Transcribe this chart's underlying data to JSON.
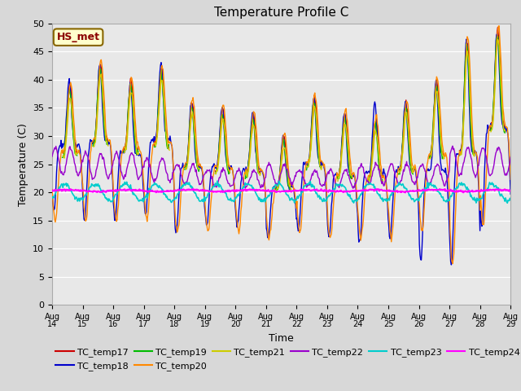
{
  "title": "Temperature Profile C",
  "xlabel": "Time",
  "ylabel": "Temperature (C)",
  "ylim": [
    0,
    50
  ],
  "background_color": "#e0e0e0",
  "grid_color": "#ffffff",
  "series": {
    "TC_temp17": {
      "color": "#cc0000",
      "lw": 1.0
    },
    "TC_temp18": {
      "color": "#0000cc",
      "lw": 1.0
    },
    "TC_temp19": {
      "color": "#00bb00",
      "lw": 1.0
    },
    "TC_temp20": {
      "color": "#ff8800",
      "lw": 1.0
    },
    "TC_temp21": {
      "color": "#cccc00",
      "lw": 1.0
    },
    "TC_temp22": {
      "color": "#9900cc",
      "lw": 1.0
    },
    "TC_temp23": {
      "color": "#00cccc",
      "lw": 1.2
    },
    "TC_temp24": {
      "color": "#ff00ff",
      "lw": 1.5
    }
  },
  "annotation_text": "HS_met",
  "tick_labels": [
    "Aug 14",
    "Aug 15",
    "Aug 16",
    "Aug 17",
    "Aug 18",
    "Aug 19",
    "Aug 20",
    "Aug 21",
    "Aug 22",
    "Aug 23",
    "Aug 24",
    "Aug 25",
    "Aug 26",
    "Aug 27",
    "Aug 28",
    "Aug 29"
  ],
  "yticks": [
    0,
    5,
    10,
    15,
    20,
    25,
    30,
    35,
    40,
    45,
    50
  ],
  "day_peaks_main": [
    39,
    43,
    40,
    42,
    36,
    35,
    34,
    30,
    37,
    34,
    33,
    36,
    40,
    47,
    49
  ],
  "day_peaks_blue": [
    40,
    43,
    39,
    43,
    36,
    35,
    34,
    30,
    37,
    34,
    36,
    36,
    40,
    47,
    49
  ],
  "day_peaks_purple": [
    28,
    27,
    27,
    26,
    25,
    24,
    24,
    25,
    24,
    24,
    25,
    25,
    25,
    28,
    28
  ],
  "day_mins_main": [
    15,
    15,
    15,
    15,
    13,
    13,
    13,
    12,
    13,
    12,
    12,
    12,
    13,
    7,
    14
  ],
  "day_mins_blue": [
    17,
    15,
    15,
    16,
    13,
    14,
    14,
    12,
    13,
    12,
    11,
    12,
    8,
    7,
    14
  ],
  "day_mins_purple": [
    18,
    18,
    18,
    18,
    18,
    18,
    18,
    18,
    18,
    18,
    18,
    18,
    18,
    18,
    18
  ]
}
